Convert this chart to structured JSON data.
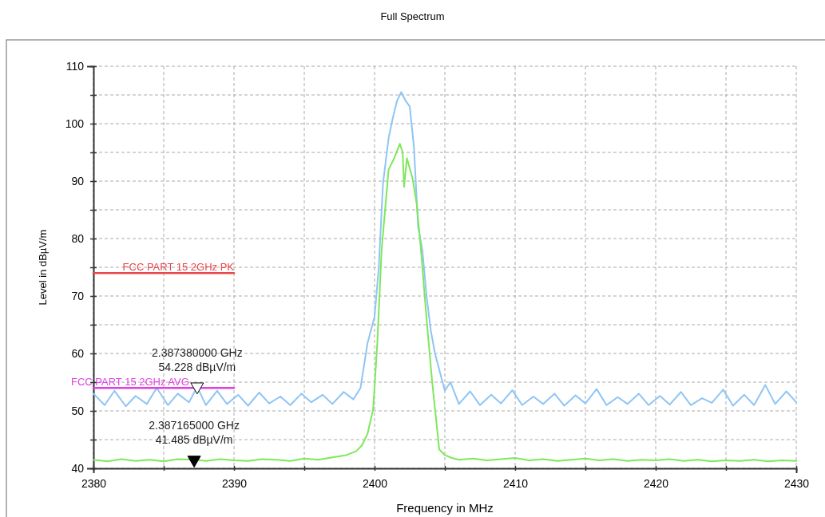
{
  "chart_data": {
    "type": "line",
    "title": "Full Spectrum",
    "xlabel": "Frequency in MHz",
    "ylabel": "Level in dBµV/m",
    "xlim": [
      2380,
      2430
    ],
    "xticks": [
      2380,
      {
        "value": 2385,
        "label": null
      },
      2390,
      {
        "value": 2395,
        "label": null
      },
      2400,
      {
        "value": 2405,
        "label": null
      },
      2410,
      {
        "value": 2415,
        "label": null
      },
      2420,
      {
        "value": 2425,
        "label": null
      },
      2430
    ],
    "ylim": [
      40,
      110
    ],
    "yticks": [
      40,
      {
        "value": 45,
        "label": null
      },
      50,
      {
        "value": 55,
        "label": null
      },
      60,
      {
        "value": 65,
        "label": null
      },
      70,
      {
        "value": 75,
        "label": null
      },
      80,
      {
        "value": 85,
        "label": null
      },
      90,
      {
        "value": 95,
        "label": null
      },
      100,
      {
        "value": 105,
        "label": null
      },
      110
    ],
    "grid": true,
    "legend": false,
    "series": [
      {
        "color": "#8ec5f5",
        "x": [
          2380,
          2380.8,
          2381.5,
          2382.3,
          2383,
          2383.8,
          2384.5,
          2385.3,
          2386,
          2386.8,
          2387.38,
          2388,
          2388.8,
          2389.5,
          2390.3,
          2391,
          2391.8,
          2392.5,
          2393.3,
          2394,
          2394.8,
          2395.5,
          2396.3,
          2397,
          2397.8,
          2398.5,
          2399,
          2399.5,
          2400,
          2400.3,
          2400.6,
          2401,
          2401.3,
          2401.6,
          2401.9,
          2402.2,
          2402.5,
          2402.8,
          2403.1,
          2403.4,
          2403.7,
          2404,
          2404.3,
          2404.6,
          2405,
          2405.4,
          2406,
          2406.8,
          2407.5,
          2408.3,
          2409,
          2409.8,
          2410.5,
          2411.3,
          2412,
          2412.8,
          2413.5,
          2414.3,
          2415,
          2415.8,
          2416.5,
          2417.3,
          2418,
          2418.8,
          2419.5,
          2420.3,
          2421,
          2421.8,
          2422.5,
          2423.3,
          2424,
          2424.8,
          2425.5,
          2426.3,
          2427,
          2427.8,
          2428.5,
          2429.3,
          2430
        ],
        "values": [
          53,
          51,
          53.5,
          50.8,
          52.6,
          51.2,
          54,
          51,
          53,
          51.5,
          54.2,
          51,
          53.5,
          51.2,
          52.8,
          50.9,
          53.2,
          51.3,
          52.5,
          51,
          53,
          51.5,
          52.8,
          51.2,
          53.3,
          52,
          54,
          61.8,
          66.4,
          75,
          89.6,
          97.5,
          101,
          104,
          105.5,
          104,
          103,
          96,
          82,
          78,
          70,
          64,
          60,
          57.2,
          53.5,
          55,
          51.2,
          53.4,
          51,
          52.8,
          51.3,
          53.6,
          51,
          52.5,
          51.2,
          53,
          50.9,
          52.7,
          51.3,
          53.8,
          51,
          52.4,
          51.2,
          53,
          51,
          52.6,
          51.1,
          53.3,
          51,
          52.2,
          51.4,
          53.7,
          50.9,
          52.8,
          51,
          54.5,
          51.2,
          53.4,
          51.5
        ]
      },
      {
        "color": "#7de85a",
        "x": [
          2380,
          2381,
          2382,
          2383,
          2384,
          2385,
          2386,
          2387.165,
          2388,
          2389,
          2390,
          2391,
          2392,
          2393,
          2394,
          2395,
          2396,
          2397,
          2398,
          2398.7,
          2399.1,
          2399.5,
          2399.9,
          2400.2,
          2400.5,
          2401,
          2401.4,
          2401.8,
          2402,
          2402.1,
          2402.3,
          2402.7,
          2403,
          2403.3,
          2403.7,
          2404.1,
          2404.4,
          2404.6,
          2405,
          2405.5,
          2406,
          2407,
          2408,
          2409,
          2410,
          2411,
          2412,
          2413,
          2414,
          2415,
          2416,
          2417,
          2418,
          2419,
          2420,
          2421,
          2422,
          2423,
          2424,
          2425,
          2426,
          2427,
          2428,
          2429,
          2430
        ],
        "values": [
          41.5,
          41.2,
          41.6,
          41.3,
          41.5,
          41.2,
          41.6,
          41.5,
          41.3,
          41.6,
          41.4,
          41.3,
          41.6,
          41.5,
          41.3,
          41.7,
          41.5,
          41.9,
          42.3,
          43,
          44,
          46,
          50.3,
          62,
          78,
          92,
          94,
          96.5,
          95,
          89,
          94,
          90.5,
          86,
          78,
          66,
          55,
          48,
          43.3,
          42.3,
          41.8,
          41.5,
          41.7,
          41.4,
          41.6,
          41.8,
          41.4,
          41.6,
          41.3,
          41.5,
          41.7,
          41.4,
          41.6,
          41.3,
          41.5,
          41.4,
          41.6,
          41.3,
          41.5,
          41.2,
          41.4,
          41.3,
          41.5,
          41.2,
          41.4,
          41.3
        ]
      },
      {
        "name": "FCC PART 15 2GHz  PK",
        "color": "#e8464a",
        "x": [
          2380,
          2390
        ],
        "values": [
          74,
          74
        ]
      },
      {
        "name": "FCC PART 15 2GHz  AVG",
        "color": "#e040e0",
        "x": [
          2380,
          2390
        ],
        "values": [
          54,
          54
        ]
      },
      {
        "type": "scatter",
        "marker": "triangle",
        "color": "#ffffff",
        "x": [
          2387.38
        ],
        "values": [
          54.228
        ]
      },
      {
        "type": "scatter",
        "marker": "triangle",
        "color": "#000000",
        "x": [
          2387.165
        ],
        "values": [
          41.485
        ]
      }
    ],
    "annotations": [
      {
        "text": "2.387380000 GHz\n54.228 dBµV/m",
        "x": 2387.38,
        "y": 54.228
      },
      {
        "text": "2.387165000 GHz\n41.485 dBµV/m",
        "x": 2387.165,
        "y": 41.485
      }
    ]
  }
}
